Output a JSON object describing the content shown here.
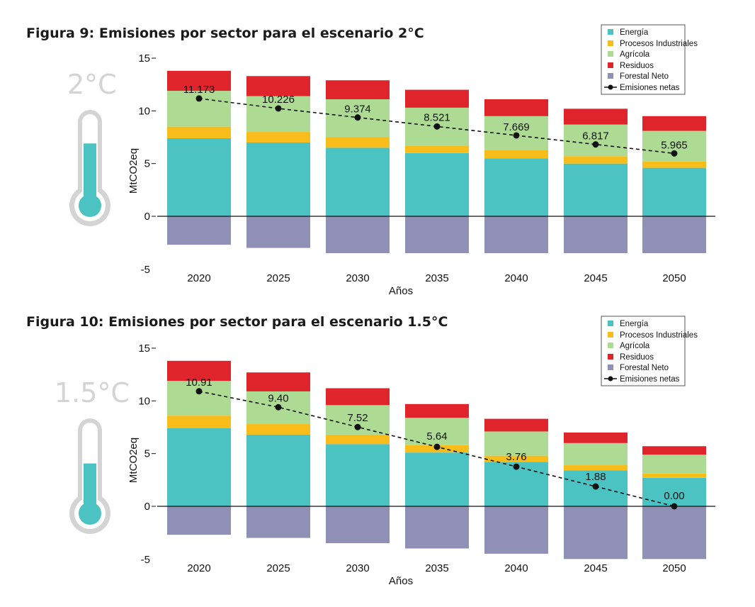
{
  "colors": {
    "energia": "#4cc3c3",
    "procesos": "#f8bd1a",
    "agricola": "#addb94",
    "residuos": "#e0242b",
    "forestal": "#908fb6",
    "line": "#111111",
    "thermo_fill": "#4cc3c3",
    "thermo_frame": "#d4d4d4"
  },
  "figures": [
    {
      "title": "Figura 9: Emisiones por sector para el escenario 2°C",
      "thermometer_label": "2°C",
      "thermometer_level": 0.68,
      "legend": [
        "Energía",
        "Procesos Industriales",
        "Agrícola",
        "Residuos",
        "Forestal Neto",
        "Emisiones netas"
      ]
    },
    {
      "title": "Figura 10: Emisiones por sector para el escenario 1.5°C",
      "thermometer_label": "1.5°C",
      "thermometer_level": 0.55,
      "legend": [
        "Energía",
        "Procesos Industriales",
        "Agrícola",
        "Residuos",
        "Forestal Neto",
        "Emisiones netas"
      ]
    }
  ],
  "chart_data": [
    {
      "type": "bar",
      "stacked": true,
      "title": "Figura 9: Emisiones por sector para el escenario 2°C",
      "xlabel": "Años",
      "ylabel": "MtCO2eq",
      "ylim": [
        -5,
        15
      ],
      "yticks": [
        "15",
        "10",
        "5",
        "0",
        "-5"
      ],
      "categories": [
        "2020",
        "2025",
        "2030",
        "2035",
        "2040",
        "2045",
        "2050"
      ],
      "series": [
        {
          "name": "Energía",
          "values": [
            7.4,
            7.0,
            6.5,
            6.0,
            5.5,
            5.0,
            4.6
          ]
        },
        {
          "name": "Procesos Industriales",
          "values": [
            1.1,
            1.0,
            1.0,
            0.7,
            0.8,
            0.7,
            0.6
          ]
        },
        {
          "name": "Agrícola",
          "values": [
            3.4,
            3.4,
            3.6,
            3.6,
            3.2,
            3.0,
            2.9
          ]
        },
        {
          "name": "Residuos",
          "values": [
            1.9,
            1.9,
            1.8,
            1.7,
            1.6,
            1.5,
            1.4
          ]
        },
        {
          "name": "Forestal Neto",
          "values": [
            -2.7,
            -3.0,
            -3.5,
            -3.5,
            -3.5,
            -3.5,
            -3.5
          ]
        }
      ],
      "line": {
        "name": "Emisiones netas",
        "values": [
          11.173,
          10.226,
          9.374,
          8.521,
          7.669,
          6.817,
          5.965
        ],
        "labels": [
          "11.173",
          "10.226",
          "9.374",
          "8.521",
          "7.669",
          "6.817",
          "5.965"
        ]
      },
      "legend_position": "top-right",
      "grid": false
    },
    {
      "type": "bar",
      "stacked": true,
      "title": "Figura 10: Emisiones por sector para el escenario 1.5°C",
      "xlabel": "Años",
      "ylabel": "MtCO2eq",
      "ylim": [
        -5,
        15
      ],
      "yticks": [
        "15",
        "10",
        "5",
        "0",
        "-5"
      ],
      "categories": [
        "2020",
        "2025",
        "2030",
        "2035",
        "2040",
        "2045",
        "2050"
      ],
      "series": [
        {
          "name": "Energía",
          "values": [
            7.4,
            6.8,
            5.9,
            5.1,
            4.2,
            3.4,
            2.7
          ]
        },
        {
          "name": "Procesos Industriales",
          "values": [
            1.2,
            1.0,
            0.9,
            0.7,
            0.6,
            0.5,
            0.4
          ]
        },
        {
          "name": "Agrícola",
          "values": [
            3.3,
            3.1,
            2.8,
            2.6,
            2.3,
            2.1,
            1.8
          ]
        },
        {
          "name": "Residuos",
          "values": [
            1.9,
            1.8,
            1.6,
            1.3,
            1.2,
            1.0,
            0.8
          ]
        },
        {
          "name": "Forestal Neto",
          "values": [
            -2.7,
            -3.0,
            -3.5,
            -4.0,
            -4.5,
            -5.0,
            -5.0
          ]
        }
      ],
      "line": {
        "name": "Emisiones netas",
        "values": [
          10.91,
          9.4,
          7.52,
          5.64,
          3.76,
          1.88,
          0.0
        ],
        "labels": [
          "10.91",
          "9.40",
          "7.52",
          "5.64",
          "3.76",
          "1.88",
          "0.00"
        ]
      },
      "legend_position": "top-right",
      "grid": false
    }
  ]
}
